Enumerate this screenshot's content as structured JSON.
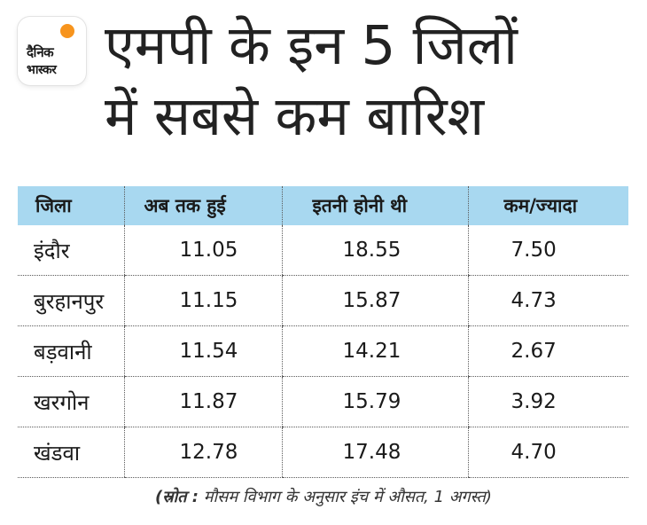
{
  "logo": {
    "line1": "दैनिक",
    "line2": "भास्कर"
  },
  "title": {
    "line1": "एमपी के इन 5 जिलों",
    "line2": "में सबसे कम बारिश"
  },
  "table": {
    "headers": [
      "जिला",
      "अब तक हुई",
      "इतनी होनी थी",
      "कम/ज्यादा"
    ],
    "rows": [
      [
        "इंदौर",
        "11.05",
        "18.55",
        "7.50"
      ],
      [
        "बुरहानपुर",
        "11.15",
        "15.87",
        "4.73"
      ],
      [
        "बड़वानी",
        "11.54",
        "14.21",
        "2.67"
      ],
      [
        "खरगोन",
        "11.87",
        "15.79",
        "3.92"
      ],
      [
        "खंडवा",
        "12.78",
        "17.48",
        "4.70"
      ]
    ]
  },
  "source": {
    "label": "(स्रोत :",
    "text": " मौसम विभाग के अनुसार इंच में औसत, 1 अगस्त)"
  },
  "colors": {
    "header_bg": "#a8d8f0",
    "logo_sun": "#f7941d"
  }
}
